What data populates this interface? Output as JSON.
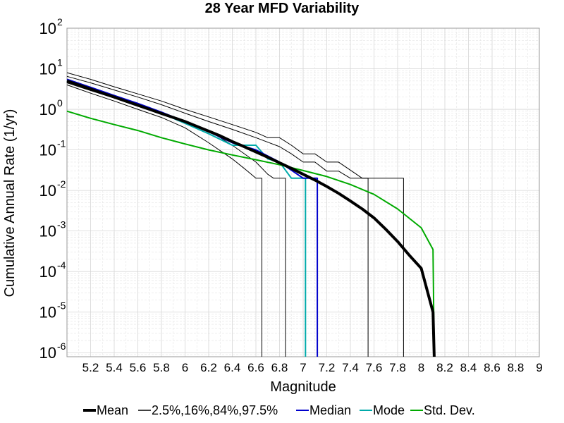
{
  "chart_data": {
    "type": "line",
    "title": "28 Year MFD Variability",
    "xlabel": "Magnitude",
    "ylabel": "Cumulative Annual Rate (1/yr)",
    "xlim": [
      5.0,
      9.0
    ],
    "ylim_log10": [
      -6.1,
      2
    ],
    "y_scale": "log",
    "grid": true,
    "legend_position": "bottom",
    "x_ticks": [
      "5.2",
      "5.4",
      "5.6",
      "5.8",
      "6",
      "6.2",
      "6.4",
      "6.6",
      "6.8",
      "7",
      "7.2",
      "7.4",
      "7.6",
      "7.8",
      "8",
      "8.2",
      "8.4",
      "8.6",
      "8.8",
      "9"
    ],
    "x_tick_values": [
      5.2,
      5.4,
      5.6,
      5.8,
      6.0,
      6.2,
      6.4,
      6.6,
      6.8,
      7.0,
      7.2,
      7.4,
      7.6,
      7.8,
      8.0,
      8.2,
      8.4,
      8.6,
      8.8,
      9.0
    ],
    "y_ticks": [
      {
        "base": "10",
        "exp": "2",
        "value": 100
      },
      {
        "base": "10",
        "exp": "1",
        "value": 10
      },
      {
        "base": "10",
        "exp": "0",
        "value": 1
      },
      {
        "base": "10",
        "exp": "-1",
        "value": 0.1
      },
      {
        "base": "10",
        "exp": "-2",
        "value": 0.01
      },
      {
        "base": "10",
        "exp": "-3",
        "value": 0.001
      },
      {
        "base": "10",
        "exp": "-4",
        "value": 0.0001
      },
      {
        "base": "10",
        "exp": "-5",
        "value": 1e-05
      },
      {
        "base": "10",
        "exp": "-6",
        "value": 1e-06
      }
    ],
    "series": [
      {
        "name": "Mean",
        "color": "#000000",
        "width": 4,
        "legend": true,
        "x": [
          5.0,
          5.1,
          5.2,
          5.3,
          5.4,
          5.5,
          5.6,
          5.7,
          5.8,
          5.9,
          6.0,
          6.1,
          6.2,
          6.3,
          6.4,
          6.5,
          6.6,
          6.7,
          6.8,
          6.9,
          7.0,
          7.1,
          7.2,
          7.3,
          7.4,
          7.5,
          7.6,
          7.7,
          7.8,
          7.9,
          8.0,
          8.1,
          8.11
        ],
        "y": [
          5.0,
          3.98,
          3.16,
          2.51,
          2.0,
          1.58,
          1.26,
          1.0,
          0.79,
          0.63,
          0.5,
          0.38,
          0.29,
          0.22,
          0.16,
          0.12,
          0.089,
          0.066,
          0.048,
          0.035,
          0.025,
          0.018,
          0.0125,
          0.0085,
          0.0055,
          0.0035,
          0.0021,
          0.0011,
          0.00055,
          0.00025,
          0.00012,
          1e-05,
          5e-07
        ]
      },
      {
        "name": "2.5%,16%,84%,97.5%",
        "color": "#000000",
        "width": 1,
        "legend": true,
        "x": [
          5.0,
          5.2,
          5.4,
          5.6,
          5.8,
          6.0,
          6.2,
          6.4,
          6.5,
          6.6,
          6.65,
          6.65
        ],
        "y": [
          4.0,
          2.5,
          1.6,
          1.0,
          0.63,
          0.35,
          0.15,
          0.06,
          0.035,
          0.02,
          0.02,
          5e-07
        ]
      },
      {
        "name": "",
        "color": "#000000",
        "width": 1,
        "legend": false,
        "x": [
          5.0,
          5.2,
          5.4,
          5.6,
          5.8,
          6.0,
          6.2,
          6.4,
          6.6,
          6.7,
          6.75,
          6.85,
          6.85
        ],
        "y": [
          4.5,
          2.9,
          1.9,
          1.25,
          0.8,
          0.5,
          0.3,
          0.13,
          0.05,
          0.025,
          0.02,
          0.02,
          5e-07
        ]
      },
      {
        "name": "",
        "color": "#000000",
        "width": 1,
        "legend": false,
        "x": [
          5.0,
          5.2,
          5.4,
          5.6,
          5.8,
          6.0,
          6.2,
          6.4,
          6.6,
          6.8,
          6.9,
          7.0,
          7.1,
          7.2,
          7.3,
          7.4,
          7.5,
          7.55,
          7.55
        ],
        "y": [
          6.5,
          4.5,
          3.0,
          2.0,
          1.3,
          0.8,
          0.5,
          0.32,
          0.2,
          0.12,
          0.08,
          0.05,
          0.05,
          0.03,
          0.03,
          0.02,
          0.02,
          0.02,
          5e-07
        ]
      },
      {
        "name": "",
        "color": "#000000",
        "width": 1,
        "legend": false,
        "x": [
          5.0,
          5.2,
          5.4,
          5.6,
          5.8,
          6.0,
          6.2,
          6.4,
          6.6,
          6.7,
          6.8,
          6.9,
          7.0,
          7.1,
          7.2,
          7.3,
          7.5,
          7.6,
          7.7,
          7.8,
          7.85,
          7.85
        ],
        "y": [
          8.0,
          5.5,
          3.6,
          2.4,
          1.6,
          1.0,
          0.65,
          0.42,
          0.27,
          0.2,
          0.2,
          0.13,
          0.08,
          0.08,
          0.05,
          0.05,
          0.02,
          0.02,
          0.02,
          0.02,
          0.02,
          5e-07
        ]
      },
      {
        "name": "Median",
        "color": "#0000cc",
        "width": 2,
        "legend": true,
        "x": [
          5.0,
          5.2,
          5.4,
          5.6,
          5.8,
          6.0,
          6.2,
          6.4,
          6.6,
          6.8,
          7.0,
          7.05,
          7.1,
          7.12,
          7.12
        ],
        "y": [
          5.5,
          3.5,
          2.2,
          1.4,
          0.85,
          0.5,
          0.28,
          0.15,
          0.1,
          0.05,
          0.02,
          0.02,
          0.02,
          0.02,
          5e-07
        ]
      },
      {
        "name": "Mode",
        "color": "#00aaaa",
        "width": 2,
        "legend": true,
        "x": [
          5.0,
          5.2,
          5.4,
          5.6,
          5.8,
          6.0,
          6.2,
          6.4,
          6.6,
          6.7,
          6.8,
          6.9,
          7.0,
          7.02,
          7.02
        ],
        "y": [
          5.0,
          3.2,
          2.0,
          1.3,
          0.8,
          0.45,
          0.25,
          0.13,
          0.13,
          0.06,
          0.05,
          0.02,
          0.02,
          0.02,
          5e-07
        ]
      },
      {
        "name": "Std. Dev.",
        "color": "#00aa00",
        "width": 2,
        "legend": true,
        "x": [
          5.0,
          5.2,
          5.4,
          5.6,
          5.8,
          6.0,
          6.2,
          6.4,
          6.6,
          6.8,
          7.0,
          7.2,
          7.4,
          7.6,
          7.8,
          8.0,
          8.1,
          8.11
        ],
        "y": [
          0.9,
          0.6,
          0.42,
          0.3,
          0.2,
          0.14,
          0.1,
          0.075,
          0.057,
          0.043,
          0.031,
          0.022,
          0.014,
          0.008,
          0.0035,
          0.0012,
          0.00035,
          5e-07
        ]
      }
    ]
  }
}
